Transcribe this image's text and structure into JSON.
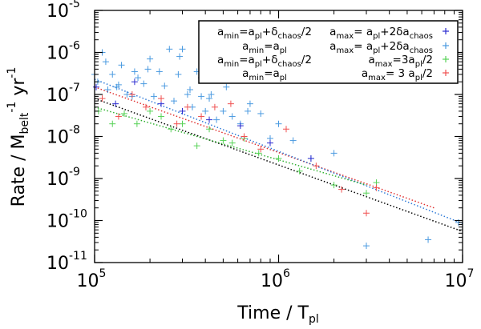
{
  "chart_data": {
    "type": "scatter",
    "title": "",
    "xlabel": "Time / T_pl",
    "ylabel": "Rate / M_belt^-1 yr^-1",
    "xscale": "log",
    "yscale": "log",
    "xlim": [
      100000,
      10000000
    ],
    "ylim": [
      1e-11,
      1e-05
    ],
    "x_ticks": [
      {
        "value": 100000,
        "base": "10",
        "exp": "5"
      },
      {
        "value": 1000000,
        "base": "10",
        "exp": "6"
      },
      {
        "value": 10000000,
        "base": "10",
        "exp": "7"
      }
    ],
    "y_ticks": [
      {
        "value": 1e-11,
        "base": "10",
        "exp": "-11"
      },
      {
        "value": 1e-10,
        "base": "10",
        "exp": "-10"
      },
      {
        "value": 1e-09,
        "base": "10",
        "exp": "-9"
      },
      {
        "value": 1e-08,
        "base": "10",
        "exp": "-8"
      },
      {
        "value": 1e-07,
        "base": "10",
        "exp": "-7"
      },
      {
        "value": 1e-06,
        "base": "10",
        "exp": "-6"
      },
      {
        "value": 1e-05,
        "base": "10",
        "exp": "-5"
      }
    ],
    "legend_position": "top-right",
    "legend": [
      {
        "left": "a_min=a_pl+δ_chaos/2",
        "right": "a_max= a_pl+2δa_chaos",
        "color": "#2b2bd0"
      },
      {
        "left": "a_min=a_pl",
        "right": "a_max= a_pl+2δa_chaos",
        "color": "#4a9ae0"
      },
      {
        "left": "a_min=a_pl+δ_chaos/2",
        "right": "a_max=3a_pl/2",
        "color": "#56d256"
      },
      {
        "left": "a_min=a_pl",
        "right": "a_max= 3 a_pl/2",
        "color": "#f05050"
      }
    ],
    "fit_lines": [
      {
        "name": "black fit",
        "color": "#000000",
        "x": [
          100000,
          10000000
        ],
        "y": [
          8e-08,
          5.5e-11
        ]
      },
      {
        "name": "red fit",
        "color": "#e03030",
        "x": [
          100000,
          7000000
        ],
        "y": [
          1.5e-07,
          2e-10
        ]
      },
      {
        "name": "blue fit",
        "color": "#2e7ad8",
        "x": [
          100000,
          10000000
        ],
        "y": [
          2.3e-07,
          8.5e-11
        ]
      },
      {
        "name": "green fit",
        "color": "#30b030",
        "x": [
          100000,
          3000000
        ],
        "y": [
          5e-08,
          7e-10
        ]
      }
    ],
    "series": [
      {
        "name": "a_min=a_pl, a_max=a_pl+2δa_chaos",
        "color": "#4a9ae0",
        "x": [
          100000,
          104000,
          110000,
          118000,
          125000,
          132000,
          140000,
          150000,
          160000,
          172000,
          185000,
          195000,
          210000,
          225000,
          240000,
          255000,
          270000,
          285000,
          300000,
          320000,
          340000,
          360000,
          380000,
          400000,
          430000,
          460000,
          500000,
          560000,
          620000,
          700000,
          800000,
          900000,
          1000000,
          1200000,
          1500000,
          2000000,
          3000000,
          6500000,
          9500000,
          115000,
          135000,
          165000,
          200000,
          290000,
          330000,
          380000,
          420000,
          520000,
          680000
        ],
        "y": [
          3e-07,
          2e-07,
          1e-06,
          1.3e-07,
          3e-07,
          1.5e-07,
          5e-07,
          1e-07,
          9e-08,
          2.5e-07,
          1.8e-07,
          4e-07,
          9e-08,
          3.5e-07,
          1.6e-07,
          1.2e-06,
          7e-08,
          3e-07,
          1.2e-06,
          1e-07,
          5e-08,
          3.5e-07,
          9e-08,
          4e-08,
          1e-07,
          2.5e-08,
          4e-08,
          3e-08,
          2e-08,
          6e-08,
          3.5e-08,
          9e-09,
          2e-08,
          8e-09,
          3e-09,
          4e-09,
          2.5e-11,
          3.5e-11,
          9e-11,
          6e-07,
          1.7e-07,
          3.5e-07,
          7e-07,
          8e-07,
          1.3e-07,
          2.5e-07,
          8e-08,
          1.5e-07,
          4e-08
        ]
      },
      {
        "name": "a_min=a_pl+δ_chaos/2, a_max=a_pl+2δa_chaos",
        "color": "#2b2bd0",
        "x": [
          102000,
          130000,
          165000,
          230000,
          300000,
          420000,
          620000,
          900000,
          1500000
        ],
        "y": [
          1.5e-07,
          6e-08,
          2e-07,
          6e-08,
          4e-08,
          2.5e-08,
          1.8e-08,
          7e-09,
          3e-09
        ]
      },
      {
        "name": "a_min=a_pl+δ_chaos/2, a_max=3a_pl/2",
        "color": "#56d256",
        "x": [
          105000,
          125000,
          145000,
          170000,
          200000,
          230000,
          260000,
          300000,
          360000,
          420000,
          500000,
          560000,
          650000,
          780000,
          1000000,
          1300000,
          2000000,
          3000000,
          3400000
        ],
        "y": [
          4e-08,
          2e-08,
          3.5e-08,
          2e-08,
          4e-08,
          3e-08,
          1.5e-08,
          2e-08,
          6e-09,
          1.5e-08,
          8e-09,
          7e-09,
          9e-09,
          4e-09,
          3e-09,
          1.5e-09,
          7e-10,
          4.5e-10,
          8e-10
        ]
      },
      {
        "name": "a_min=a_pl, a_max=3a_pl/2",
        "color": "#f05050",
        "x": [
          110000,
          135000,
          160000,
          190000,
          230000,
          280000,
          320000,
          380000,
          450000,
          550000,
          650000,
          800000,
          1100000,
          1600000,
          2200000,
          3000000,
          3400000
        ],
        "y": [
          8e-08,
          3e-08,
          1e-07,
          5e-08,
          8e-08,
          2e-08,
          5e-08,
          3e-08,
          5e-08,
          6e-08,
          1e-08,
          5e-09,
          1.5e-08,
          2e-09,
          5.5e-10,
          1.5e-10,
          6e-10
        ]
      }
    ]
  }
}
